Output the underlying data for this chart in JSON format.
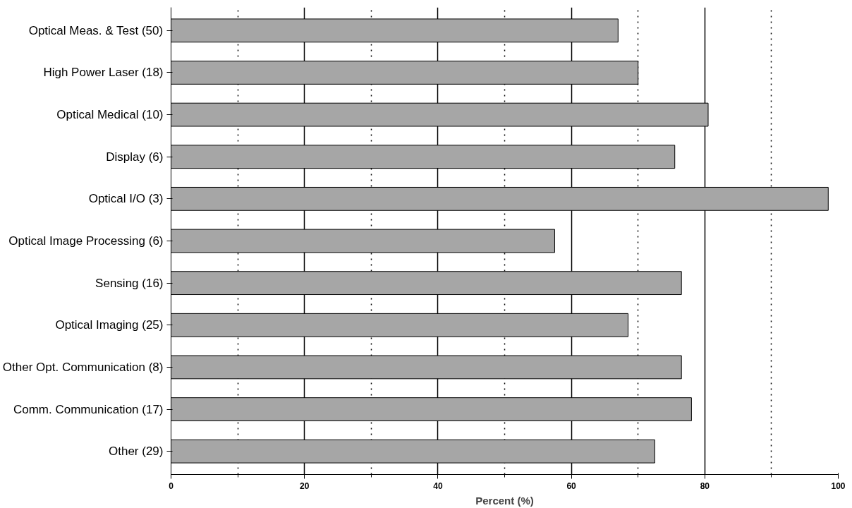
{
  "chart_data": {
    "type": "bar",
    "orientation": "horizontal",
    "xlabel": "Percent (%)",
    "categories": [
      "Optical Meas. & Test (50)",
      "High Power Laser (18)",
      "Optical Medical (10)",
      "Display (6)",
      "Optical I/O (3)",
      "Optical Image Processing (6)",
      "Sensing (16)",
      "Optical Imaging (25)",
      "Other Opt. Communication (8)",
      "Comm. Communication (17)",
      "Other (29)"
    ],
    "values": [
      67,
      70,
      80.5,
      75.5,
      98.5,
      57.5,
      76.5,
      68.5,
      76.5,
      78,
      72.5
    ],
    "color": "#a6a6a6",
    "xlim": [
      0,
      100
    ],
    "xticks": [
      0,
      20,
      40,
      60,
      80,
      100
    ],
    "grid": "x"
  }
}
